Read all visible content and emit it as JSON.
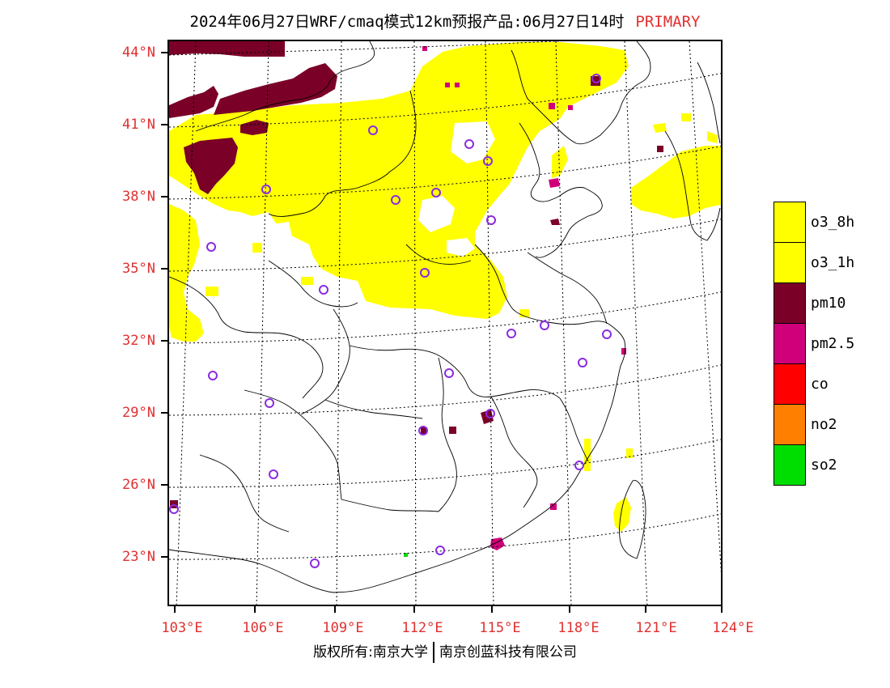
{
  "title": {
    "text": "2024年06月27日WRF/cmaq模式12km预报产品:06月27日14时",
    "tag": "PRIMARY"
  },
  "lat_labels": [
    "44°N",
    "41°N",
    "38°N",
    "35°N",
    "32°N",
    "29°N",
    "26°N",
    "23°N"
  ],
  "lon_labels": [
    "103°E",
    "106°E",
    "109°E",
    "112°E",
    "115°E",
    "118°E",
    "121°E",
    "124°E"
  ],
  "legend": [
    {
      "label": "o3_8h",
      "color": "#ffff00"
    },
    {
      "label": "o3_1h",
      "color": "#ffff00"
    },
    {
      "label": "pm10",
      "color": "#7a0028"
    },
    {
      "label": "pm2.5",
      "color": "#d0007a"
    },
    {
      "label": "co",
      "color": "#ff0000"
    },
    {
      "label": "no2",
      "color": "#ff8000"
    },
    {
      "label": "so2",
      "color": "#00dd00"
    }
  ],
  "colors": {
    "o3": "#ffff00",
    "pm10": "#7a0028",
    "pm25": "#d0007a",
    "so2": "#00dd00",
    "station": "#8a2be2",
    "label_red": "#e03030"
  },
  "footer": {
    "left": "版权所有:南京大学",
    "right": "南京创蓝科技有限公司"
  }
}
